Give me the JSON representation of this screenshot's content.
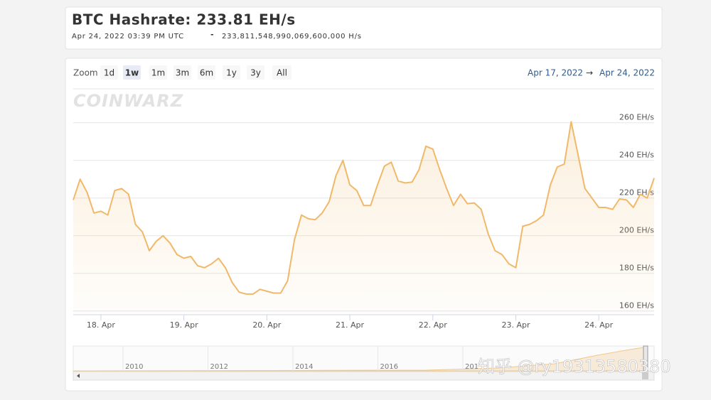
{
  "header": {
    "title": "BTC Hashrate: 233.81 EH/s",
    "timestamp": "Apr 24, 2022 03:39 PM UTC",
    "separator": "-",
    "raw_value": "233,811,548,990,069,600,000 H/s"
  },
  "toolbar": {
    "zoom_label": "Zoom",
    "buttons": [
      "1d",
      "1w",
      "1m",
      "3m",
      "6m",
      "1y",
      "3y",
      "All"
    ],
    "range_from": "Apr 17, 2022",
    "range_arrow": "→",
    "range_to": "Apr 24, 2022"
  },
  "logo": "COINWARZ",
  "chart_data": {
    "type": "line",
    "categories": [
      null,
      null,
      null,
      null,
      "18. Apr",
      null,
      null,
      null,
      null,
      null,
      null,
      null,
      null,
      null,
      null,
      null,
      "19. Apr",
      null,
      null,
      null,
      null,
      null,
      null,
      null,
      null,
      null,
      null,
      null,
      "20. Apr",
      null,
      null,
      null,
      null,
      null,
      null,
      null,
      null,
      null,
      null,
      null,
      "21. Apr",
      null,
      null,
      null,
      null,
      null,
      null,
      null,
      null,
      null,
      null,
      null,
      "22. Apr",
      null,
      null,
      null,
      null,
      null,
      null,
      null,
      null,
      null,
      null,
      null,
      "23. Apr",
      null,
      null,
      null,
      null,
      null,
      null,
      null,
      null,
      null,
      null,
      null,
      "24. Apr",
      null,
      null,
      null,
      null,
      null,
      null,
      null,
      null
    ],
    "values": [
      219,
      230,
      223,
      212,
      213,
      211,
      224,
      225,
      222,
      206,
      202,
      192,
      197,
      200,
      196,
      190,
      188,
      189,
      184,
      183,
      185,
      188,
      183,
      175,
      170,
      169,
      169,
      171.5,
      170.5,
      169.5,
      169.5,
      176,
      198,
      211,
      209,
      208.5,
      212,
      218,
      232,
      240,
      227,
      224,
      216,
      216,
      227,
      237,
      239,
      229,
      228,
      228.5,
      235,
      247.5,
      246,
      235,
      225,
      216,
      222,
      217,
      217.4,
      214,
      201,
      192,
      190,
      185,
      183,
      205,
      206,
      208,
      211,
      227,
      236.5,
      238,
      260.5,
      243,
      225,
      220,
      215,
      215,
      214,
      219.5,
      219,
      215,
      222,
      220,
      230.6
    ],
    "color": "#f0b96a",
    "ylim": [
      158,
      278
    ],
    "yticks": [
      {
        "value": 160,
        "label": "160 EH/s"
      },
      {
        "value": 180,
        "label": "180 EH/s"
      },
      {
        "value": 200,
        "label": "200 EH/s"
      },
      {
        "value": 220,
        "label": "220 EH/s"
      },
      {
        "value": 240,
        "label": "240 EH/s"
      },
      {
        "value": 260,
        "label": "260 EH/s"
      }
    ],
    "grid": true
  },
  "navigator": {
    "labels": [
      "2010",
      "2012",
      "2014",
      "2016",
      "201"
    ]
  },
  "watermark": "知乎 @ry19313580380"
}
